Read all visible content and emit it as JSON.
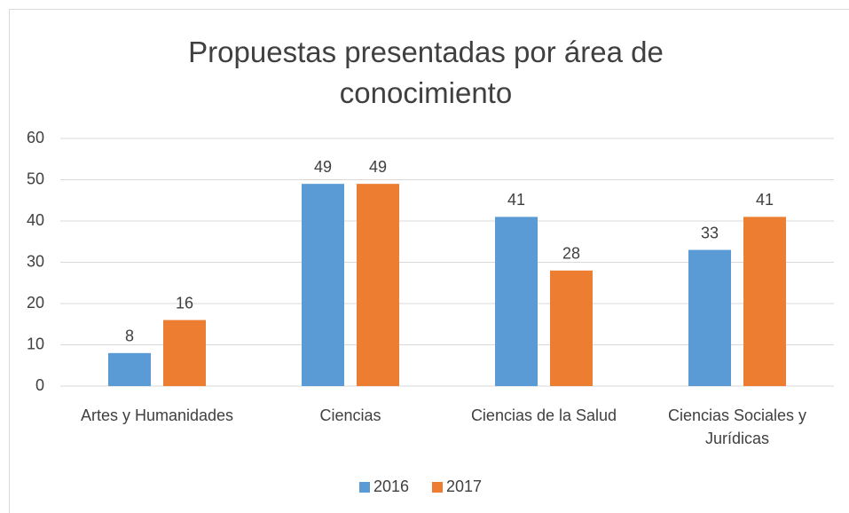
{
  "chart_data": {
    "type": "bar",
    "title": "Propuestas presentadas por área de conocimiento",
    "categories": [
      "Artes y Humanidades",
      "Ciencias",
      "Ciencias de la Salud",
      "Ciencias Sociales y Jurídicas"
    ],
    "series": [
      {
        "name": "2016",
        "color": "#5b9bd5",
        "values": [
          8,
          49,
          41,
          33
        ]
      },
      {
        "name": "2017",
        "color": "#ed7d31",
        "values": [
          16,
          49,
          28,
          41
        ]
      }
    ],
    "ylim": [
      0,
      60
    ],
    "yticks": [
      0,
      10,
      20,
      30,
      40,
      50,
      60
    ],
    "grid": true,
    "legend": "bottom"
  }
}
